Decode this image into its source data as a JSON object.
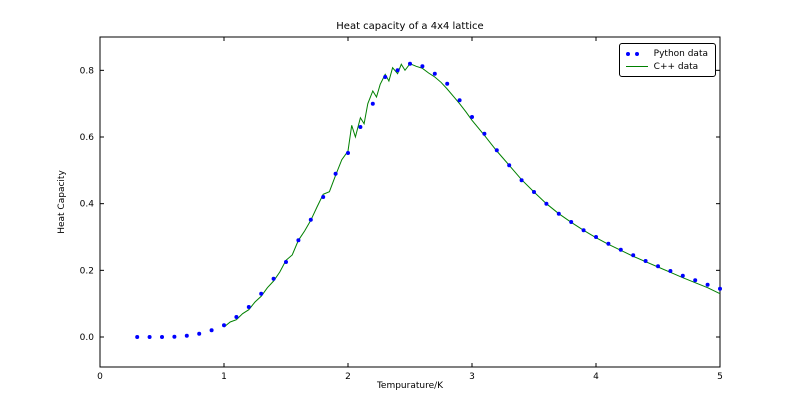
{
  "chart_data": {
    "type": "scatter",
    "title": "Heat capacity of a 4x4 lattice",
    "xlabel": "Tempurature/K",
    "ylabel": "Heat Capacity",
    "xlim": [
      0,
      5
    ],
    "ylim": [
      -0.09,
      0.9
    ],
    "xticks": [
      0,
      1,
      2,
      3,
      4,
      5
    ],
    "xtick_labels": [
      "0",
      "1",
      "2",
      "3",
      "4",
      "5"
    ],
    "yticks": [
      0.0,
      0.2,
      0.4,
      0.6,
      0.8
    ],
    "ytick_labels": [
      "0.0",
      "0.2",
      "0.4",
      "0.6",
      "0.8"
    ],
    "grid": false,
    "legend": {
      "position": "upper right"
    },
    "series": [
      {
        "name": "Python data",
        "type": "scatter",
        "marker": "dot",
        "color": "#0000ff",
        "x": [
          0.3,
          0.4,
          0.5,
          0.6,
          0.7,
          0.8,
          0.9,
          1.0,
          1.1,
          1.2,
          1.3,
          1.4,
          1.5,
          1.6,
          1.7,
          1.8,
          1.9,
          2.0,
          2.1,
          2.2,
          2.3,
          2.4,
          2.5,
          2.6,
          2.7,
          2.8,
          2.9,
          3.0,
          3.1,
          3.2,
          3.3,
          3.4,
          3.5,
          3.6,
          3.7,
          3.8,
          3.9,
          4.0,
          4.1,
          4.2,
          4.3,
          4.4,
          4.5,
          4.6,
          4.7,
          4.8,
          4.9,
          5.0
        ],
        "y": [
          0.0,
          0.0,
          0.0,
          0.001,
          0.004,
          0.01,
          0.02,
          0.035,
          0.06,
          0.09,
          0.13,
          0.175,
          0.225,
          0.29,
          0.352,
          0.42,
          0.49,
          0.552,
          0.63,
          0.7,
          0.78,
          0.8,
          0.82,
          0.812,
          0.79,
          0.76,
          0.71,
          0.66,
          0.61,
          0.56,
          0.515,
          0.47,
          0.435,
          0.4,
          0.37,
          0.345,
          0.32,
          0.3,
          0.28,
          0.262,
          0.245,
          0.228,
          0.212,
          0.198,
          0.184,
          0.17,
          0.157,
          0.145
        ]
      },
      {
        "name": "C++ data",
        "type": "line",
        "color": "#008000",
        "x": [
          1.0,
          1.05,
          1.1,
          1.15,
          1.2,
          1.25,
          1.3,
          1.35,
          1.4,
          1.45,
          1.5,
          1.55,
          1.6,
          1.65,
          1.7,
          1.75,
          1.8,
          1.85,
          1.9,
          1.95,
          2.0,
          2.03,
          2.06,
          2.1,
          2.13,
          2.16,
          2.2,
          2.23,
          2.26,
          2.3,
          2.33,
          2.36,
          2.4,
          2.43,
          2.46,
          2.5,
          2.55,
          2.6,
          2.65,
          2.7,
          2.75,
          2.8,
          2.85,
          2.9,
          2.95,
          3.0,
          3.1,
          3.2,
          3.3,
          3.4,
          3.5,
          3.6,
          3.7,
          3.8,
          3.9,
          4.0,
          4.1,
          4.2,
          4.3,
          4.4,
          4.5,
          4.6,
          4.7,
          4.8,
          4.9,
          5.0
        ],
        "y": [
          0.03,
          0.045,
          0.052,
          0.07,
          0.082,
          0.105,
          0.122,
          0.148,
          0.168,
          0.195,
          0.23,
          0.246,
          0.29,
          0.318,
          0.35,
          0.39,
          0.428,
          0.436,
          0.485,
          0.532,
          0.558,
          0.635,
          0.6,
          0.658,
          0.64,
          0.7,
          0.738,
          0.72,
          0.758,
          0.788,
          0.768,
          0.808,
          0.79,
          0.818,
          0.8,
          0.82,
          0.812,
          0.806,
          0.792,
          0.78,
          0.764,
          0.744,
          0.722,
          0.7,
          0.676,
          0.65,
          0.605,
          0.558,
          0.515,
          0.472,
          0.435,
          0.4,
          0.37,
          0.344,
          0.32,
          0.298,
          0.278,
          0.26,
          0.242,
          0.226,
          0.21,
          0.194,
          0.178,
          0.163,
          0.148,
          0.13
        ]
      }
    ]
  }
}
